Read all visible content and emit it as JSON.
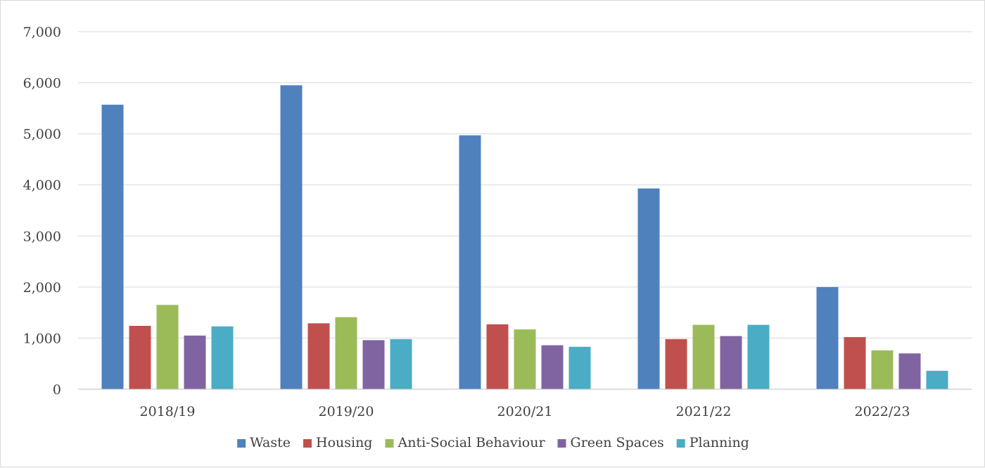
{
  "chart_data": {
    "type": "bar",
    "title": "",
    "xlabel": "",
    "ylabel": "",
    "categories": [
      "2018/19",
      "2019/20",
      "2020/21",
      "2021/22",
      "2022/23"
    ],
    "ylim": [
      0,
      7000
    ],
    "yticks": [
      0,
      1000,
      2000,
      3000,
      4000,
      5000,
      6000,
      7000
    ],
    "ytick_labels": [
      "0",
      "1,000",
      "2,000",
      "3,000",
      "4,000",
      "5,000",
      "6,000",
      "7,000"
    ],
    "grid": true,
    "legend_position": "bottom",
    "series": [
      {
        "name": "Waste",
        "color": "#4F81BD",
        "values": [
          5570,
          5950,
          4970,
          3930,
          2000
        ]
      },
      {
        "name": "Housing",
        "color": "#C0504D",
        "values": [
          1240,
          1290,
          1270,
          980,
          1020
        ]
      },
      {
        "name": "Anti-Social Behaviour",
        "color": "#9BBB59",
        "values": [
          1650,
          1410,
          1170,
          1260,
          760
        ]
      },
      {
        "name": "Green Spaces",
        "color": "#8064A2",
        "values": [
          1050,
          960,
          860,
          1040,
          700
        ]
      },
      {
        "name": "Planning",
        "color": "#4BACC6",
        "values": [
          1230,
          980,
          830,
          1260,
          360
        ]
      }
    ]
  }
}
